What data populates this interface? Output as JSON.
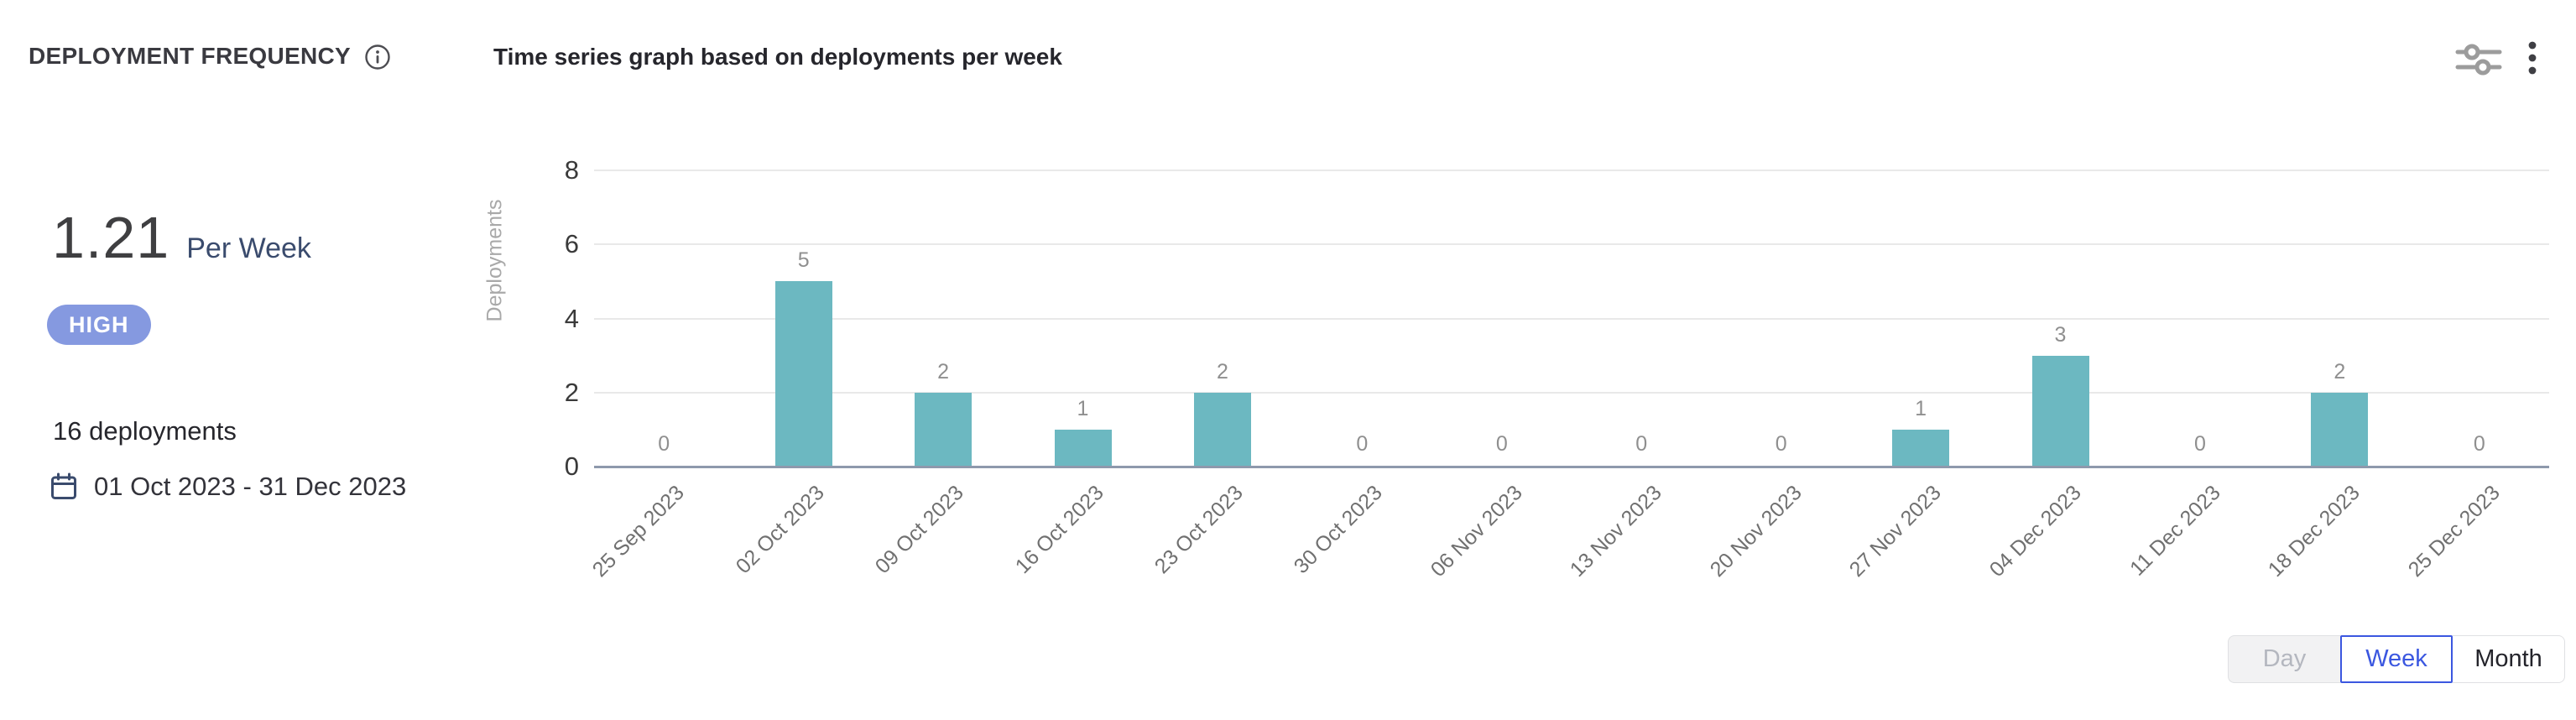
{
  "header": {
    "title": "DEPLOYMENT FREQUENCY",
    "subtitle": "Time series graph based on deployments per week"
  },
  "icons": {
    "title_info": "info-icon",
    "filter": "sliders-icon",
    "menu": "kebab-menu-icon",
    "date": "calendar-icon"
  },
  "summary": {
    "rate_value": "1.21",
    "rate_unit": "Per Week",
    "level_badge": "HIGH",
    "total_deployments": "16 deployments",
    "date_range": "01 Oct 2023 - 31 Dec 2023"
  },
  "chart_data": {
    "type": "bar",
    "title": "",
    "xlabel": "",
    "ylabel": "Deployments",
    "categories": [
      "25 Sep 2023",
      "02 Oct 2023",
      "09 Oct 2023",
      "16 Oct 2023",
      "23 Oct 2023",
      "30 Oct 2023",
      "06 Nov 2023",
      "13 Nov 2023",
      "20 Nov 2023",
      "27 Nov 2023",
      "04 Dec 2023",
      "11 Dec 2023",
      "18 Dec 2023",
      "25 Dec 2023"
    ],
    "values": [
      0,
      5,
      2,
      1,
      2,
      0,
      0,
      0,
      0,
      1,
      3,
      0,
      2,
      0
    ],
    "yticks": [
      0,
      2,
      4,
      6,
      8
    ],
    "ylim": [
      0,
      8
    ],
    "grid": true,
    "legend_position": "none",
    "bar_color": "#6cb8c1",
    "data_labels": true
  },
  "controls": {
    "granularity": [
      {
        "label": "Day",
        "state": "disabled"
      },
      {
        "label": "Week",
        "state": "selected"
      },
      {
        "label": "Month",
        "state": "default"
      }
    ]
  },
  "colors": {
    "accent_teal": "#6cb8c1",
    "badge_blue": "#8599e0",
    "selected_blue": "#3b57e0",
    "navy_text": "#3a4b6d",
    "axis_baseline": "#8e99ac",
    "gridline": "#e9e9e9"
  }
}
